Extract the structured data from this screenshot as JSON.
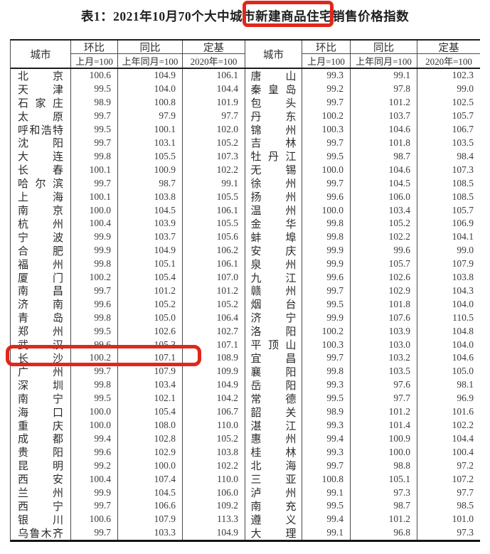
{
  "title": {
    "text": "表1：2021年10月70个大中城市新建商品住宅销售价格指数"
  },
  "annotations": {
    "box_color": "#e0271c",
    "title_box_target": "新建商品住宅",
    "row_box_target": "长沙"
  },
  "header": {
    "city": "城市",
    "mom": "环比",
    "mom_base": "上月=100",
    "yoy": "同比",
    "yoy_base": "上年同月=100",
    "fixed": "定基",
    "fixed_base": "2020年=100"
  },
  "chart_data": {
    "type": "table",
    "title": "表1：2021年10月70个大中城市新建商品住宅销售价格指数",
    "columns": [
      "城市",
      "环比(上月=100)",
      "同比(上年同月=100)",
      "定基(2020年=100)"
    ]
  },
  "table": {
    "left_rows": [
      {
        "city": "北京",
        "mom": "100.6",
        "yoy": "104.9",
        "base": "106.1"
      },
      {
        "city": "天津",
        "mom": "99.5",
        "yoy": "104.0",
        "base": "104.4"
      },
      {
        "city": "石家庄",
        "mom": "98.9",
        "yoy": "100.8",
        "base": "101.9"
      },
      {
        "city": "太原",
        "mom": "99.7",
        "yoy": "97.9",
        "base": "97.7"
      },
      {
        "city": "呼和浩特",
        "mom": "99.5",
        "yoy": "100.1",
        "base": "102.0"
      },
      {
        "city": "沈阳",
        "mom": "99.7",
        "yoy": "103.1",
        "base": "105.2"
      },
      {
        "city": "大连",
        "mom": "99.8",
        "yoy": "105.5",
        "base": "107.3"
      },
      {
        "city": "长春",
        "mom": "100.1",
        "yoy": "100.9",
        "base": "102.2"
      },
      {
        "city": "哈尔滨",
        "mom": "99.7",
        "yoy": "98.7",
        "base": "99.1"
      },
      {
        "city": "上海",
        "mom": "100.1",
        "yoy": "103.8",
        "base": "105.5"
      },
      {
        "city": "南京",
        "mom": "100.0",
        "yoy": "104.5",
        "base": "106.1"
      },
      {
        "city": "杭州",
        "mom": "100.4",
        "yoy": "103.9",
        "base": "105.5"
      },
      {
        "city": "宁波",
        "mom": "99.9",
        "yoy": "103.7",
        "base": "105.6"
      },
      {
        "city": "合肥",
        "mom": "99.9",
        "yoy": "104.9",
        "base": "106.2"
      },
      {
        "city": "福州",
        "mom": "99.8",
        "yoy": "105.1",
        "base": "106.1"
      },
      {
        "city": "厦门",
        "mom": "100.2",
        "yoy": "105.4",
        "base": "107.0"
      },
      {
        "city": "南昌",
        "mom": "99.7",
        "yoy": "101.2",
        "base": "101.2"
      },
      {
        "city": "济南",
        "mom": "99.6",
        "yoy": "105.2",
        "base": "105.2"
      },
      {
        "city": "青岛",
        "mom": "99.8",
        "yoy": "105.0",
        "base": "106.4"
      },
      {
        "city": "郑州",
        "mom": "99.5",
        "yoy": "102.6",
        "base": "102.7"
      },
      {
        "city": "武汉",
        "mom": "99.6",
        "yoy": "105.3",
        "base": "107.1"
      },
      {
        "city": "长沙",
        "mom": "100.2",
        "yoy": "107.1",
        "base": "108.9"
      },
      {
        "city": "广州",
        "mom": "99.7",
        "yoy": "107.9",
        "base": "109.9"
      },
      {
        "city": "深圳",
        "mom": "99.8",
        "yoy": "103.4",
        "base": "104.9"
      },
      {
        "city": "南宁",
        "mom": "99.5",
        "yoy": "102.1",
        "base": "104.2"
      },
      {
        "city": "海口",
        "mom": "100.0",
        "yoy": "105.4",
        "base": "106.7"
      },
      {
        "city": "重庆",
        "mom": "100.0",
        "yoy": "108.0",
        "base": "110.0"
      },
      {
        "city": "成都",
        "mom": "99.4",
        "yoy": "102.8",
        "base": "105.2"
      },
      {
        "city": "贵阳",
        "mom": "99.6",
        "yoy": "102.9",
        "base": "103.8"
      },
      {
        "city": "昆明",
        "mom": "99.2",
        "yoy": "100.0",
        "base": "102.2"
      },
      {
        "city": "西安",
        "mom": "100.4",
        "yoy": "107.4",
        "base": "110.0"
      },
      {
        "city": "兰州",
        "mom": "99.9",
        "yoy": "104.5",
        "base": "106.0"
      },
      {
        "city": "西宁",
        "mom": "99.7",
        "yoy": "106.6",
        "base": "109.2"
      },
      {
        "city": "银川",
        "mom": "100.6",
        "yoy": "107.9",
        "base": "113.3"
      },
      {
        "city": "乌鲁木齐",
        "mom": "99.7",
        "yoy": "103.3",
        "base": "104.9"
      }
    ],
    "right_rows": [
      {
        "city": "唐山",
        "mom": "99.3",
        "yoy": "99.1",
        "base": "102.3"
      },
      {
        "city": "秦皇岛",
        "mom": "99.2",
        "yoy": "97.8",
        "base": "99.0"
      },
      {
        "city": "包头",
        "mom": "99.7",
        "yoy": "101.2",
        "base": "102.5"
      },
      {
        "city": "丹东",
        "mom": "100.2",
        "yoy": "103.7",
        "base": "105.7"
      },
      {
        "city": "锦州",
        "mom": "100.3",
        "yoy": "104.6",
        "base": "106.7"
      },
      {
        "city": "吉林",
        "mom": "99.7",
        "yoy": "101.8",
        "base": "103.5"
      },
      {
        "city": "牡丹江",
        "mom": "99.5",
        "yoy": "98.7",
        "base": "98.4"
      },
      {
        "city": "无锡",
        "mom": "100.0",
        "yoy": "104.6",
        "base": "107.3"
      },
      {
        "city": "徐州",
        "mom": "99.7",
        "yoy": "104.5",
        "base": "108.5"
      },
      {
        "city": "扬州",
        "mom": "99.6",
        "yoy": "106.0",
        "base": "108.5"
      },
      {
        "city": "温州",
        "mom": "100.0",
        "yoy": "103.4",
        "base": "105.7"
      },
      {
        "city": "金华",
        "mom": "99.8",
        "yoy": "105.2",
        "base": "106.9"
      },
      {
        "city": "蚌埠",
        "mom": "99.8",
        "yoy": "102.2",
        "base": "104.1"
      },
      {
        "city": "安庆",
        "mom": "99.9",
        "yoy": "99.6",
        "base": "99.0"
      },
      {
        "city": "泉州",
        "mom": "99.9",
        "yoy": "105.7",
        "base": "107.9"
      },
      {
        "city": "九江",
        "mom": "99.6",
        "yoy": "102.6",
        "base": "103.8"
      },
      {
        "city": "赣州",
        "mom": "99.7",
        "yoy": "102.9",
        "base": "104.3"
      },
      {
        "city": "烟台",
        "mom": "99.5",
        "yoy": "101.8",
        "base": "104.0"
      },
      {
        "city": "济宁",
        "mom": "99.9",
        "yoy": "107.6",
        "base": "110.5"
      },
      {
        "city": "洛阳",
        "mom": "100.2",
        "yoy": "103.9",
        "base": "104.8"
      },
      {
        "city": "平顶山",
        "mom": "100.3",
        "yoy": "103.0",
        "base": "104.0"
      },
      {
        "city": "宜昌",
        "mom": "99.7",
        "yoy": "103.2",
        "base": "104.6"
      },
      {
        "city": "襄阳",
        "mom": "99.8",
        "yoy": "103.5",
        "base": "105.0"
      },
      {
        "city": "岳阳",
        "mom": "99.3",
        "yoy": "97.6",
        "base": "98.1"
      },
      {
        "city": "常德",
        "mom": "99.5",
        "yoy": "97.7",
        "base": "96.9"
      },
      {
        "city": "韶关",
        "mom": "98.9",
        "yoy": "101.2",
        "base": "101.6"
      },
      {
        "city": "湛江",
        "mom": "99.3",
        "yoy": "101.4",
        "base": "102.2"
      },
      {
        "city": "惠州",
        "mom": "99.4",
        "yoy": "100.9",
        "base": "104.4"
      },
      {
        "city": "桂林",
        "mom": "99.3",
        "yoy": "100.0",
        "base": "100.4"
      },
      {
        "city": "北海",
        "mom": "99.7",
        "yoy": "98.8",
        "base": "97.2"
      },
      {
        "city": "三亚",
        "mom": "100.8",
        "yoy": "105.1",
        "base": "107.2"
      },
      {
        "city": "泸州",
        "mom": "99.1",
        "yoy": "97.3",
        "base": "97.7"
      },
      {
        "city": "南充",
        "mom": "99.5",
        "yoy": "98.7",
        "base": "98.5"
      },
      {
        "city": "遵义",
        "mom": "99.4",
        "yoy": "101.2",
        "base": "101.0"
      },
      {
        "city": "大理",
        "mom": "99.1",
        "yoy": "96.8",
        "base": "97.3"
      }
    ]
  }
}
